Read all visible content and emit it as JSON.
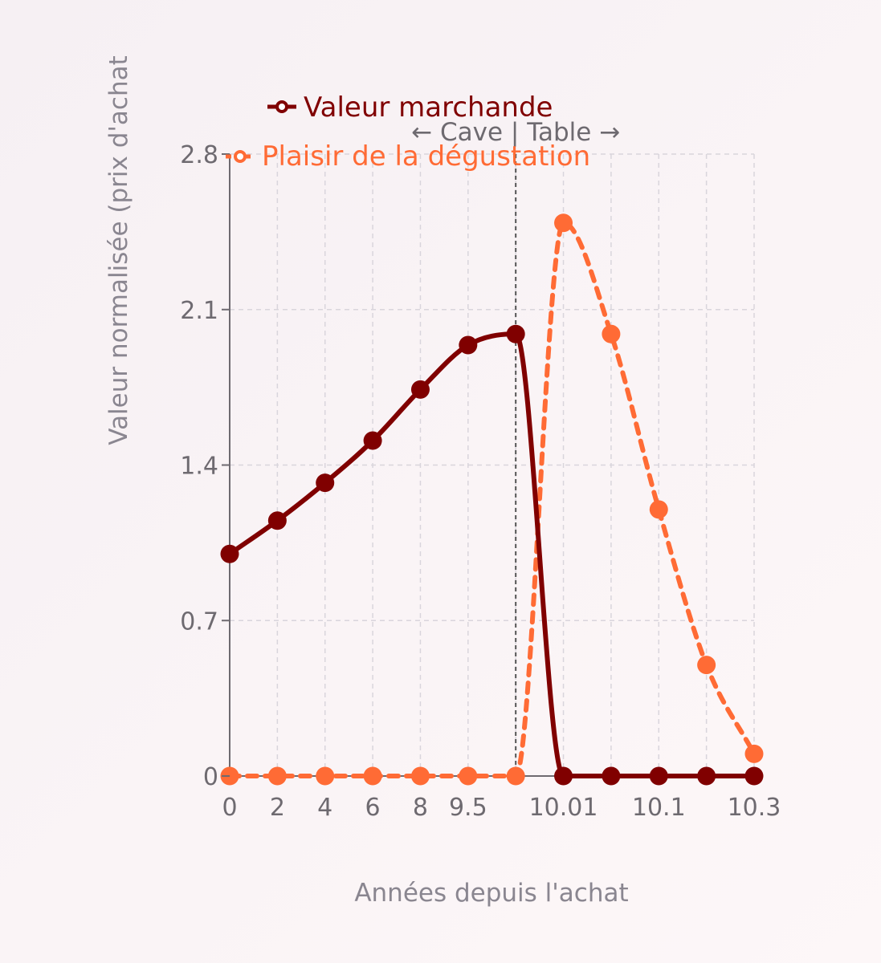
{
  "colors": {
    "market": "#800000",
    "pleasure": "#ff6b35",
    "grid": "#d9d5dc",
    "axis": "#6e6a70"
  },
  "chart_data": {
    "type": "line",
    "categories": [
      "0",
      "2",
      "4",
      "6",
      "8",
      "9.5",
      "10",
      "10.01",
      "10.05",
      "10.1",
      "10.2",
      "10.3"
    ],
    "x_tick_labels": [
      "0",
      "2",
      "4",
      "6",
      "8",
      "9.5",
      "",
      "10.01",
      "",
      "10.1",
      "",
      "10.3"
    ],
    "series": [
      {
        "name": "Valeur marchande",
        "color": "#800000",
        "style": "solid",
        "values": [
          1.0,
          1.15,
          1.32,
          1.51,
          1.74,
          1.94,
          1.99,
          0,
          0,
          0,
          0,
          0
        ]
      },
      {
        "name": "Plaisir de la dégustation",
        "color": "#ff6b35",
        "style": "dashed",
        "values": [
          0,
          0,
          0,
          0,
          0,
          0,
          0,
          2.49,
          1.99,
          1.2,
          0.5,
          0.1
        ]
      }
    ],
    "xlabel": "Années depuis l'achat",
    "ylabel": "Valeur normalisée (prix d'achat",
    "ylim": [
      0,
      2.8
    ],
    "y_ticks": [
      "0",
      "0.7",
      "1.4",
      "2.1",
      "2.8"
    ],
    "grid": true,
    "legend_position": "top",
    "annotation": {
      "text": "← Cave | Table →",
      "at_category": "10"
    }
  }
}
